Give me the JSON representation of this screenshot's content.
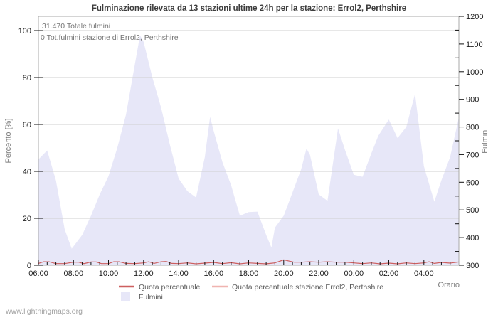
{
  "page": {
    "watermark": "www.lightningmaps.org"
  },
  "chart_data": {
    "type": "area",
    "title": "Fulminazione rilevata da 13 stazioni ultime 24h per la stazione: Errol2, Perthshire",
    "annotations": [
      "31.470 Totale fulmini",
      "0 Tot.fulmini stazione di Errol2, Perthshire"
    ],
    "x_axis": {
      "label": "Orario",
      "start_hour": 6,
      "end_hour": 30,
      "major_step_hours": 2,
      "minor_step_hours": 0.5,
      "major_labels": [
        "06:00",
        "08:00",
        "10:00",
        "12:00",
        "14:00",
        "16:00",
        "18:00",
        "20:00",
        "22:00",
        "00:00",
        "02:00",
        "04:00"
      ]
    },
    "left_axis": {
      "label": "Percento  [%]",
      "min": 0,
      "max": 100,
      "ticks": [
        0,
        20,
        40,
        60,
        80,
        100
      ]
    },
    "right_axis": {
      "label": "Fulmini",
      "min": 300,
      "max": 1200,
      "ticks": [
        300,
        400,
        500,
        600,
        700,
        800,
        900,
        1000,
        1100,
        1200
      ],
      "minor_step": 50
    },
    "grid": "on",
    "legend_position": "bottom",
    "colors": {
      "area_fill": "#e7e7f8",
      "line_total_pct": "#cd5f5f",
      "line_station_pct": "#f0b4b0",
      "gridline": "#cfcfcf",
      "plot_border": "#a8a8a8",
      "tick_text": "#1c1c1c",
      "gray_text": "#787878"
    },
    "series": [
      {
        "name": "Fulmini",
        "kind": "area",
        "axis": "right",
        "points": [
          [
            6.0,
            683
          ],
          [
            6.5,
            715
          ],
          [
            7.0,
            607
          ],
          [
            7.5,
            430
          ],
          [
            7.9,
            360
          ],
          [
            8.5,
            410
          ],
          [
            9.0,
            479
          ],
          [
            9.5,
            556
          ],
          [
            10.0,
            622
          ],
          [
            10.5,
            724
          ],
          [
            11.0,
            845
          ],
          [
            11.5,
            1024
          ],
          [
            11.8,
            1131
          ],
          [
            12.0,
            1108
          ],
          [
            12.5,
            980
          ],
          [
            13.0,
            870
          ],
          [
            13.5,
            737
          ],
          [
            14.0,
            614
          ],
          [
            14.5,
            568
          ],
          [
            15.0,
            545
          ],
          [
            15.5,
            691
          ],
          [
            15.8,
            837
          ],
          [
            16.0,
            786
          ],
          [
            16.5,
            673
          ],
          [
            17.0,
            589
          ],
          [
            17.5,
            479
          ],
          [
            18.0,
            492
          ],
          [
            18.5,
            494
          ],
          [
            19.0,
            410
          ],
          [
            19.3,
            364
          ],
          [
            19.5,
            436
          ],
          [
            20.0,
            479
          ],
          [
            20.5,
            563
          ],
          [
            21.0,
            648
          ],
          [
            21.3,
            722
          ],
          [
            21.5,
            699
          ],
          [
            22.0,
            556
          ],
          [
            22.5,
            533
          ],
          [
            23.1,
            795
          ],
          [
            23.5,
            717
          ],
          [
            24.0,
            627
          ],
          [
            24.5,
            620
          ],
          [
            25.0,
            704
          ],
          [
            25.4,
            768
          ],
          [
            26.0,
            827
          ],
          [
            26.5,
            760
          ],
          [
            27.0,
            800
          ],
          [
            27.5,
            920
          ],
          [
            28.0,
            658
          ],
          [
            28.6,
            530
          ],
          [
            29.0,
            607
          ],
          [
            29.5,
            691
          ],
          [
            30.0,
            835
          ]
        ]
      },
      {
        "name": "Quota percentuale",
        "kind": "line",
        "axis": "left",
        "points": [
          [
            6.0,
            0.8
          ],
          [
            6.3,
            1.5
          ],
          [
            6.6,
            1.5
          ],
          [
            7.0,
            0.7
          ],
          [
            7.5,
            0.7
          ],
          [
            8.0,
            1.3
          ],
          [
            8.3,
            1.3
          ],
          [
            8.6,
            0.7
          ],
          [
            9.0,
            1.4
          ],
          [
            9.3,
            1.4
          ],
          [
            9.6,
            0.7
          ],
          [
            10.0,
            0.7
          ],
          [
            10.3,
            1.5
          ],
          [
            10.6,
            1.5
          ],
          [
            11.0,
            0.8
          ],
          [
            11.5,
            0.7
          ],
          [
            12.0,
            1.0
          ],
          [
            12.3,
            1.5
          ],
          [
            12.6,
            0.8
          ],
          [
            13.0,
            1.5
          ],
          [
            13.3,
            1.6
          ],
          [
            13.6,
            0.8
          ],
          [
            14.0,
            0.7
          ],
          [
            14.5,
            1.0
          ],
          [
            15.0,
            0.6
          ],
          [
            15.5,
            0.9
          ],
          [
            16.0,
            1.2
          ],
          [
            16.5,
            0.7
          ],
          [
            17.0,
            1.1
          ],
          [
            17.5,
            0.6
          ],
          [
            18.0,
            1.0
          ],
          [
            18.5,
            0.8
          ],
          [
            19.0,
            0.6
          ],
          [
            19.5,
            1.0
          ],
          [
            20.0,
            2.3
          ],
          [
            20.3,
            1.8
          ],
          [
            20.6,
            1.3
          ],
          [
            21.0,
            1.3
          ],
          [
            21.5,
            1.5
          ],
          [
            22.0,
            1.3
          ],
          [
            22.5,
            1.5
          ],
          [
            23.0,
            1.3
          ],
          [
            23.5,
            1.3
          ],
          [
            24.0,
            1.0
          ],
          [
            24.5,
            0.7
          ],
          [
            25.0,
            1.0
          ],
          [
            25.5,
            0.6
          ],
          [
            26.0,
            0.9
          ],
          [
            26.5,
            0.6
          ],
          [
            27.0,
            1.0
          ],
          [
            27.5,
            0.7
          ],
          [
            28.0,
            1.0
          ],
          [
            28.3,
            1.5
          ],
          [
            28.6,
            0.8
          ],
          [
            29.0,
            1.2
          ],
          [
            29.5,
            0.9
          ],
          [
            30.0,
            1.4
          ]
        ]
      },
      {
        "name": "Quota percentuale stazione Errol2, Perthshire",
        "kind": "line",
        "axis": "left",
        "points": [
          [
            6.0,
            0.1
          ],
          [
            30.0,
            0.1
          ]
        ]
      }
    ],
    "legend": [
      {
        "label": "Quota percentuale",
        "marker": "line",
        "color": "#cd5f5f"
      },
      {
        "label": "Quota percentuale stazione Errol2, Perthshire",
        "marker": "line",
        "color": "#f0b4b0"
      },
      {
        "label": "Fulmini",
        "marker": "area",
        "color": "#e7e7f8"
      }
    ]
  }
}
